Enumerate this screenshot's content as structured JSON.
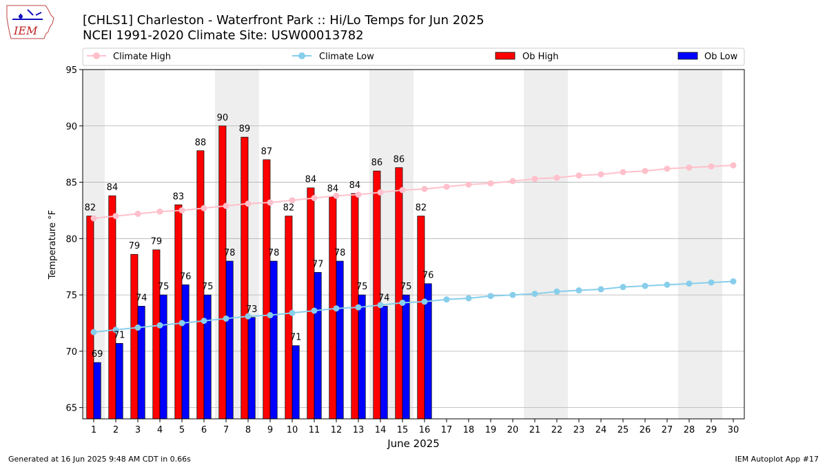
{
  "header": {
    "title_line1": "[CHLS1] Charleston - Waterfront Park :: Hi/Lo Temps for Jun 2025",
    "title_line2": "NCEI 1991-2020 Climate Site: USW00013782",
    "logo_text": "IEM"
  },
  "footer": {
    "left": "Generated at 16 Jun 2025 9:48 AM CDT in 0.66s",
    "right": "IEM Autoplot App #17"
  },
  "colors": {
    "ob_high": "#ff0000",
    "ob_low": "#0000ff",
    "climate_high": "#ffc0cb",
    "climate_low": "#87ceeb",
    "weekend_shade": "#eeeeee",
    "grid": "#b0b0b0"
  },
  "chart_data": {
    "type": "bar",
    "xlabel": "June 2025",
    "ylabel": "Temperature °F",
    "ylim": [
      64,
      95
    ],
    "yticks": [
      65,
      70,
      75,
      80,
      85,
      90,
      95
    ],
    "xlim": [
      0.5,
      30.5
    ],
    "grid": "horizontal",
    "legend_placement": "top",
    "days": [
      1,
      2,
      3,
      4,
      5,
      6,
      7,
      8,
      9,
      10,
      11,
      12,
      13,
      14,
      15,
      16,
      17,
      18,
      19,
      20,
      21,
      22,
      23,
      24,
      25,
      26,
      27,
      28,
      29,
      30
    ],
    "weekend_days": [
      1,
      7,
      8,
      14,
      15,
      21,
      22,
      28,
      29
    ],
    "series": [
      {
        "name": "Ob High",
        "kind": "bar",
        "values": [
          82,
          84,
          79,
          79,
          83,
          88,
          90,
          89,
          87,
          82,
          84,
          84,
          84,
          86,
          86,
          82
        ],
        "bar_values": [
          82,
          83.8,
          78.6,
          79,
          83,
          87.8,
          90,
          89,
          87,
          82,
          84.5,
          83.7,
          84,
          86,
          86.3,
          82
        ]
      },
      {
        "name": "Ob Low",
        "kind": "bar",
        "values": [
          69,
          71,
          74,
          75,
          76,
          75,
          78,
          73,
          78,
          71,
          77,
          78,
          75,
          74,
          75,
          76
        ],
        "bar_values": [
          69,
          70.7,
          74,
          75,
          75.9,
          75,
          78,
          73,
          78,
          70.5,
          77,
          78,
          75,
          74,
          75,
          76
        ]
      },
      {
        "name": "Climate High",
        "kind": "line",
        "values": [
          81.8,
          82.0,
          82.2,
          82.4,
          82.5,
          82.7,
          82.9,
          83.1,
          83.2,
          83.4,
          83.6,
          83.8,
          83.9,
          84.1,
          84.3,
          84.4,
          84.6,
          84.8,
          84.9,
          85.1,
          85.3,
          85.4,
          85.6,
          85.7,
          85.9,
          86.0,
          86.2,
          86.3,
          86.4,
          86.5
        ]
      },
      {
        "name": "Climate Low",
        "kind": "line",
        "values": [
          71.7,
          71.9,
          72.1,
          72.3,
          72.5,
          72.7,
          72.9,
          73.1,
          73.2,
          73.4,
          73.6,
          73.8,
          73.9,
          74.1,
          74.3,
          74.4,
          74.6,
          74.7,
          74.9,
          75.0,
          75.1,
          75.3,
          75.4,
          75.5,
          75.7,
          75.8,
          75.9,
          76.0,
          76.1,
          76.2
        ]
      }
    ]
  }
}
